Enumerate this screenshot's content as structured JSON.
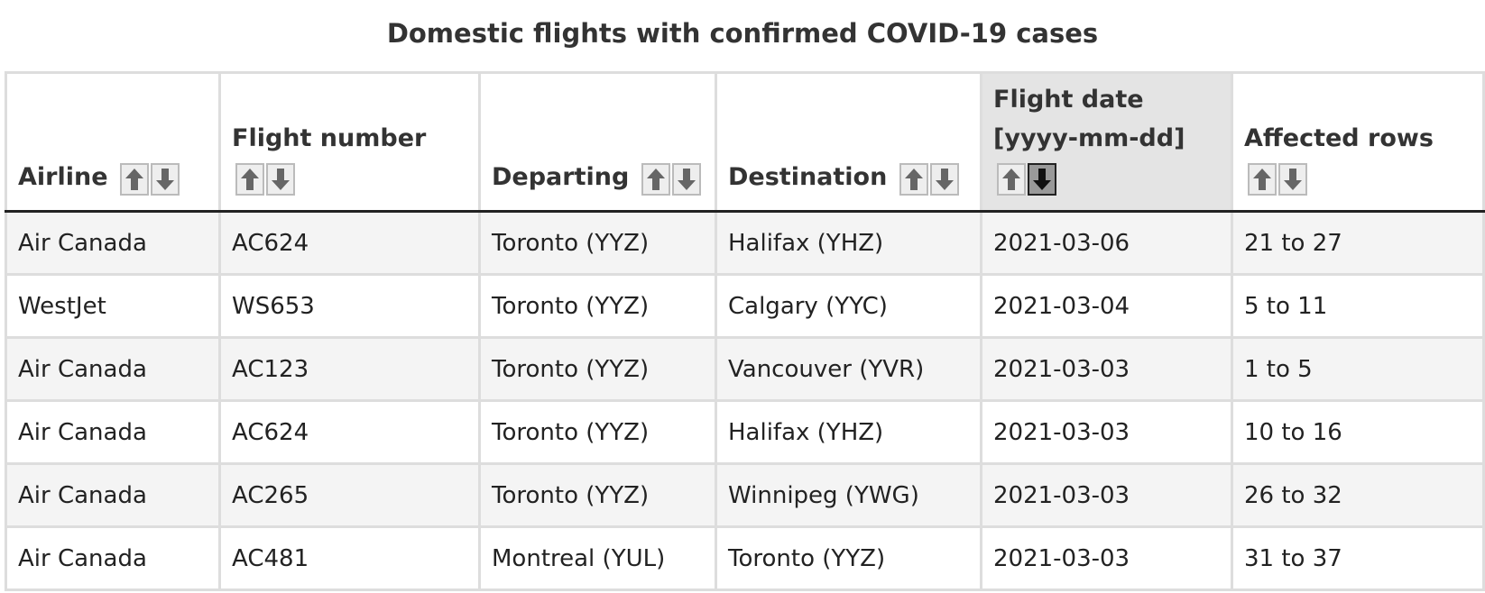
{
  "title": "Domestic flights with confirmed COVID-19 cases",
  "table": {
    "columns": [
      "Airline",
      "Flight number",
      "Departing",
      "Destination",
      "Flight date [yyyy-mm-dd]",
      "Affected rows"
    ],
    "rows": [
      [
        "Air Canada",
        "AC624",
        "Toronto (YYZ)",
        "Halifax (YHZ)",
        "2021-03-06",
        "21 to 27"
      ],
      [
        "WestJet",
        "WS653",
        "Toronto (YYZ)",
        "Calgary (YYC)",
        "2021-03-04",
        "5 to 11"
      ],
      [
        "Air Canada",
        "AC123",
        "Toronto (YYZ)",
        "Vancouver (YVR)",
        "2021-03-03",
        "1 to 5"
      ],
      [
        "Air Canada",
        "AC624",
        "Toronto (YYZ)",
        "Halifax (YHZ)",
        "2021-03-03",
        "10 to 16"
      ],
      [
        "Air Canada",
        "AC265",
        "Toronto (YYZ)",
        "Winnipeg (YWG)",
        "2021-03-03",
        "26 to 32"
      ],
      [
        "Air Canada",
        "AC481",
        "Montreal (YUL)",
        "Toronto (YYZ)",
        "2021-03-03",
        "31 to 37"
      ]
    ]
  }
}
